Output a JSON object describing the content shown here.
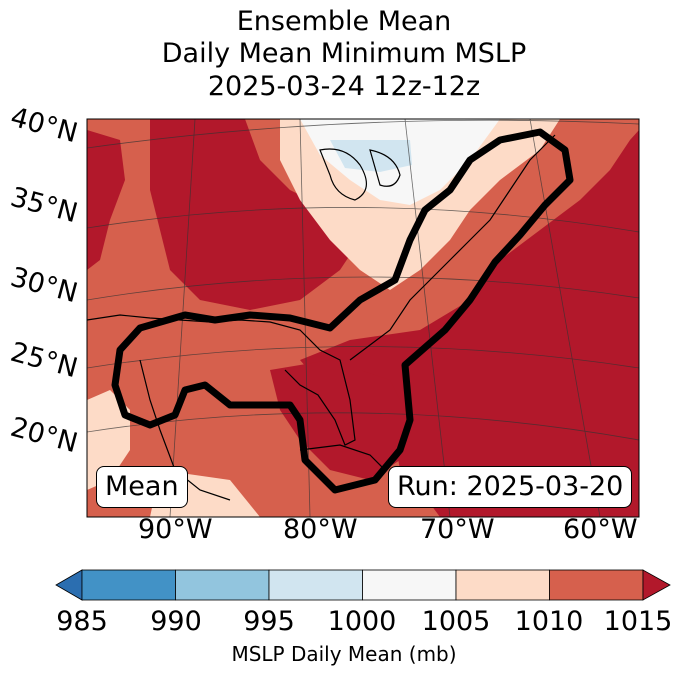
{
  "title": {
    "line1": "Ensemble Mean",
    "line2": "Daily Mean Minimum MSLP",
    "line3": "2025-03-24 12z-12z"
  },
  "map": {
    "lat_labels": [
      "40°N",
      "35°N",
      "30°N",
      "25°N",
      "20°N"
    ],
    "lon_labels": [
      "90°W",
      "80°W",
      "70°W",
      "60°W"
    ],
    "mean_box": "Mean",
    "run_box": "Run: 2025-03-20"
  },
  "colorbar": {
    "label": "MSLP Daily Mean (mb)",
    "ticks": [
      "985",
      "990",
      "995",
      "1000",
      "1005",
      "1010",
      "1015"
    ],
    "colors": [
      "#2b6eb0",
      "#4292c6",
      "#92c5de",
      "#d1e5f0",
      "#f7f7f7",
      "#fddbc7",
      "#d6604d",
      "#b2182b"
    ]
  },
  "chart_data": {
    "type": "heatmap",
    "title": "Ensemble Mean Daily Mean Minimum MSLP 2025-03-24 12z-12z",
    "variable": "MSLP Daily Mean (mb)",
    "levels": [
      985,
      990,
      995,
      1000,
      1005,
      1010,
      1015
    ],
    "extend": "both",
    "region": "Eastern North America / Gulf of Mexico",
    "lat_ticks": [
      40,
      35,
      30,
      25,
      20
    ],
    "lon_ticks": [
      -90,
      -80,
      -70,
      -60
    ]
  }
}
